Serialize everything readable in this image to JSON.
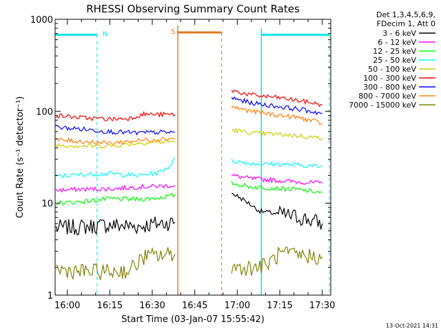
{
  "colors": {
    "background": "#ffffff",
    "axis": "#000000",
    "cyan_marker": "#00e5e5",
    "orange_marker": "#e07820"
  },
  "chart_data": {
    "type": "line",
    "title": "RHESSI Observing Summary Count Rates",
    "xlabel": "Start Time (03-Jan-07 15:55:42)",
    "ylabel": "Count Rate (s⁻¹ detector⁻¹)",
    "y_scale": "log",
    "ylim": [
      1,
      1000
    ],
    "xlim": [
      "15:55:42",
      "17:33:00"
    ],
    "x_tick_labels": [
      "16:00",
      "16:15",
      "16:30",
      "16:45",
      "17:00",
      "17:15",
      "17:30"
    ],
    "y_tick_labels": [
      "1",
      "10",
      "100",
      "1000"
    ],
    "grid": false,
    "legend_position": "right",
    "legend_header": [
      "Det 1,3,4,5,6,9,",
      "FDecim 1, Att 0"
    ],
    "footer_date": "13-Oct-2021 14:31",
    "markers": [
      {
        "label": "N",
        "color": "#00e5e5",
        "level": 680,
        "start": "15:55:42",
        "end": "16:10:30",
        "dashed_lines": [
          "16:10:30"
        ]
      },
      {
        "label": "",
        "color": "#00e5e5",
        "level": 680,
        "start": "17:08:30",
        "end": "17:32:30",
        "dashed_lines": [
          "17:32:30"
        ],
        "solid_lines": [
          "17:08:30"
        ]
      },
      {
        "label": "S",
        "color": "#e07820",
        "level": 720,
        "start": "16:39:00",
        "end": "16:54:30",
        "dashed_lines": [
          "16:54:30"
        ],
        "solid_lines": [
          "16:39:00"
        ]
      }
    ],
    "series": [
      {
        "name": "3 - 6 keV",
        "color": "#000000",
        "segments": [
          {
            "x": [
              "15:56",
              "16:05",
              "16:15",
              "16:25",
              "16:32",
              "16:38"
            ],
            "y": [
              5.4,
              5.5,
              5.8,
              5.6,
              6.0,
              6.2
            ]
          },
          {
            "x": [
              "16:58",
              "17:03",
              "17:08",
              "17:15",
              "17:22",
              "17:30"
            ],
            "y": [
              13,
              10.5,
              8.2,
              7.6,
              7.0,
              6.0
            ]
          }
        ]
      },
      {
        "name": "6 - 12 keV",
        "color": "#ff00ff",
        "segments": [
          {
            "x": [
              "15:56",
              "16:05",
              "16:15",
              "16:25",
              "16:32",
              "16:38"
            ],
            "y": [
              13.8,
              14.2,
              14.3,
              15.0,
              15.3,
              15.6
            ]
          },
          {
            "x": [
              "16:58",
              "17:05",
              "17:15",
              "17:22",
              "17:30"
            ],
            "y": [
              20,
              18.5,
              17.6,
              17.0,
              16.5
            ]
          }
        ]
      },
      {
        "name": "12 - 25 keV",
        "color": "#00ff00",
        "segments": [
          {
            "x": [
              "15:56",
              "16:05",
              "16:15",
              "16:25",
              "16:32",
              "16:38"
            ],
            "y": [
              10.0,
              10.4,
              11.2,
              11.0,
              11.4,
              12.2
            ]
          },
          {
            "x": [
              "16:58",
              "17:05",
              "17:15",
              "17:22",
              "17:30"
            ],
            "y": [
              16.5,
              15.0,
              14.5,
              14.0,
              13.0
            ]
          }
        ]
      },
      {
        "name": "25 - 50 keV",
        "color": "#00ffff",
        "segments": [
          {
            "x": [
              "15:56",
              "16:05",
              "16:15",
              "16:25",
              "16:32",
              "16:36",
              "16:38"
            ],
            "y": [
              19.5,
              20.5,
              21.0,
              20.0,
              21.5,
              25.0,
              31.0
            ]
          },
          {
            "x": [
              "16:58",
              "17:05",
              "17:15",
              "17:22",
              "17:30"
            ],
            "y": [
              29,
              27,
              26.5,
              26.0,
              25.0
            ]
          }
        ]
      },
      {
        "name": "50 - 100 keV",
        "color": "#cccc00",
        "segments": [
          {
            "x": [
              "15:56",
              "16:05",
              "16:15",
              "16:25",
              "16:32",
              "16:38"
            ],
            "y": [
              43,
              42,
              42,
              45,
              46,
              47
            ]
          },
          {
            "x": [
              "16:58",
              "17:05",
              "17:15",
              "17:22",
              "17:30"
            ],
            "y": [
              63,
              58,
              56,
              54,
              51
            ]
          }
        ]
      },
      {
        "name": "100 - 300 keV",
        "color": "#ff0000",
        "segments": [
          {
            "x": [
              "15:56",
              "16:05",
              "16:15",
              "16:22",
              "16:27",
              "16:32",
              "16:38"
            ],
            "y": [
              90,
              85,
              82,
              84,
              93,
              92,
              92
            ]
          },
          {
            "x": [
              "16:58",
              "17:05",
              "17:15",
              "17:22",
              "17:30"
            ],
            "y": [
              168,
              150,
              140,
              130,
              118
            ]
          }
        ]
      },
      {
        "name": "300 - 800 keV",
        "color": "#0000ff",
        "segments": [
          {
            "x": [
              "15:56",
              "16:05",
              "16:15",
              "16:25",
              "16:32",
              "16:38"
            ],
            "y": [
              67,
              64,
              60,
              58,
              59,
              59
            ]
          },
          {
            "x": [
              "16:58",
              "17:05",
              "17:15",
              "17:22",
              "17:30"
            ],
            "y": [
              140,
              123,
              112,
              105,
              95
            ]
          }
        ]
      },
      {
        "name": "800 - 7000 keV",
        "color": "#ff8000",
        "segments": [
          {
            "x": [
              "15:56",
              "16:05",
              "16:15",
              "16:25",
              "16:32",
              "16:38"
            ],
            "y": [
              49,
              47,
              45,
              48,
              50,
              51
            ]
          },
          {
            "x": [
              "16:58",
              "17:05",
              "17:15",
              "17:22",
              "17:30"
            ],
            "y": [
              112,
              100,
              90,
              85,
              74
            ]
          }
        ]
      },
      {
        "name": "7000 - 15000 keV",
        "color": "#808000",
        "segments": [
          {
            "x": [
              "15:56",
              "16:05",
              "16:15",
              "16:22",
              "16:27",
              "16:32",
              "16:38"
            ],
            "y": [
              1.9,
              1.8,
              1.8,
              1.85,
              2.6,
              2.7,
              2.8
            ]
          },
          {
            "x": [
              "16:58",
              "17:05",
              "17:10",
              "17:15",
              "17:22",
              "17:30"
            ],
            "y": [
              2.0,
              2.0,
              2.1,
              2.8,
              2.7,
              2.6
            ]
          }
        ]
      }
    ]
  }
}
